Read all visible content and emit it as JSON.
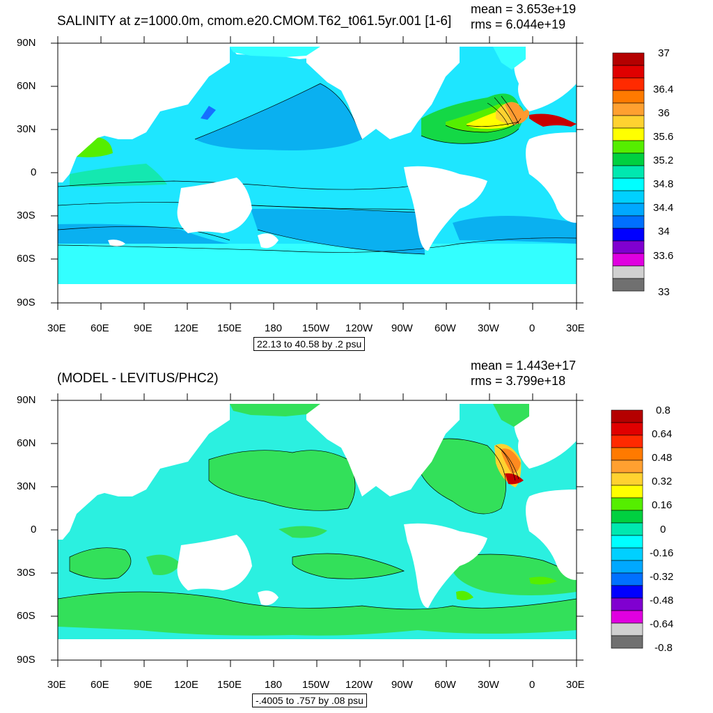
{
  "panel_top": {
    "title": "SALINITY at z=1000.0m, cmom.e20.CMOM.T62_t061.5yr.001 [1-6]",
    "mean": "mean = 3.653e+19",
    "rms": "rms = 6.044e+19",
    "contour_info": "22.13 to 40.58 by .2 psu",
    "colorbar_labels": [
      "37",
      "36.4",
      "36",
      "35.6",
      "35.2",
      "34.8",
      "34.4",
      "34",
      "33.6",
      "33"
    ],
    "colorbar_colors": [
      "#b40000",
      "#e00000",
      "#ff2a00",
      "#ff7a00",
      "#ffa030",
      "#ffd230",
      "#ffff00",
      "#55ee00",
      "#00d040",
      "#00e8b0",
      "#00ffff",
      "#00d0ff",
      "#00a8ff",
      "#0070ff",
      "#0000ff",
      "#8000d0",
      "#e000e0",
      "#d0d0d0",
      "#707070"
    ]
  },
  "panel_bottom": {
    "title": "(MODEL - LEVITUS/PHC2)",
    "mean": "mean = 1.443e+17",
    "rms": "rms = 3.799e+18",
    "contour_info": "-.4005 to .757 by .08 psu",
    "colorbar_labels": [
      "0.8",
      "0.64",
      "0.48",
      "0.32",
      "0.16",
      "0",
      "-0.16",
      "-0.32",
      "-0.48",
      "-0.64",
      "-0.8"
    ],
    "colorbar_colors": [
      "#b40000",
      "#e00000",
      "#ff2a00",
      "#ff7a00",
      "#ffa030",
      "#ffd230",
      "#ffff00",
      "#55ee00",
      "#00d040",
      "#00e8b0",
      "#00ffff",
      "#00d0ff",
      "#00a8ff",
      "#0070ff",
      "#0000ff",
      "#8000d0",
      "#e000e0",
      "#d0d0d0",
      "#707070"
    ]
  },
  "axes": {
    "lat_labels": [
      "90N",
      "60N",
      "30N",
      "0",
      "30S",
      "60S",
      "90S"
    ],
    "lon_labels": [
      "30E",
      "60E",
      "90E",
      "120E",
      "150E",
      "180",
      "150W",
      "120W",
      "90W",
      "60W",
      "30W",
      "0",
      "30E"
    ]
  }
}
